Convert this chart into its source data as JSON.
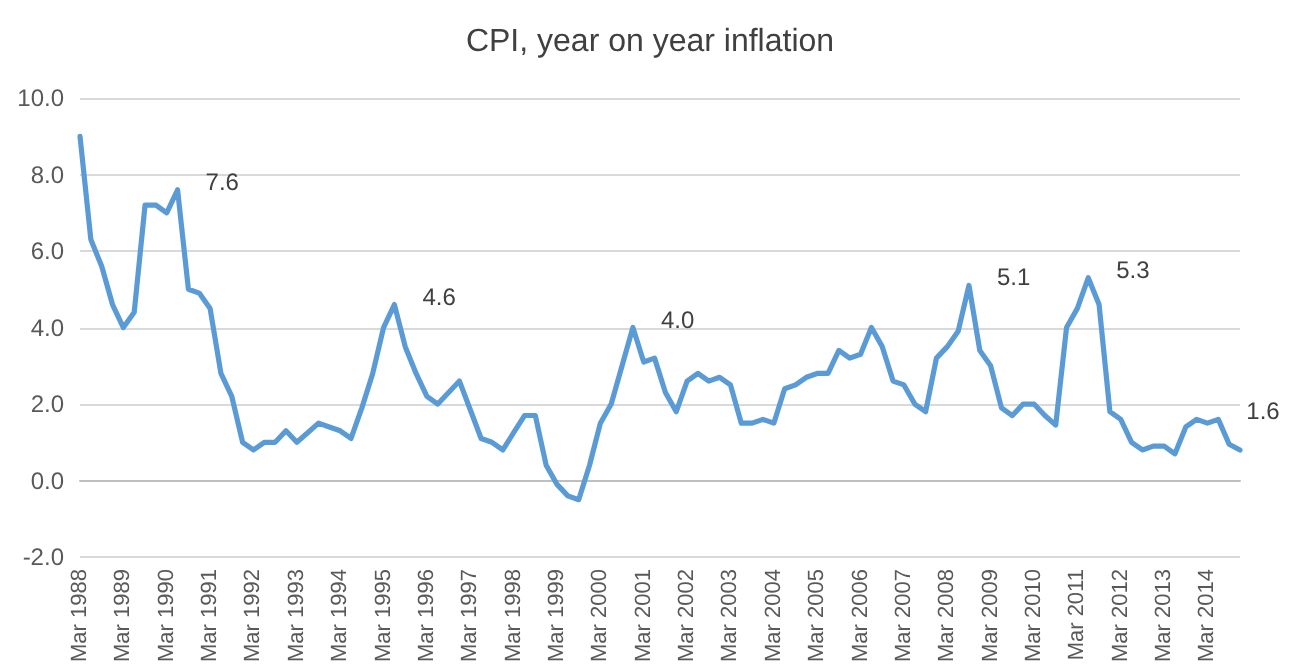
{
  "chart_data": {
    "type": "line",
    "title": "CPI, year on year inflation",
    "categories": [
      "Mar 1988",
      null,
      null,
      null,
      "Mar 1989",
      null,
      null,
      null,
      "Mar 1990",
      null,
      null,
      null,
      "Mar 1991",
      null,
      null,
      null,
      "Mar 1992",
      null,
      null,
      null,
      "Mar 1993",
      null,
      null,
      null,
      "Mar 1994",
      null,
      null,
      null,
      "Mar 1995",
      null,
      null,
      null,
      "Mar 1996",
      null,
      null,
      null,
      "Mar 1997",
      null,
      null,
      null,
      "Mar 1998",
      null,
      null,
      null,
      "Mar 1999",
      null,
      null,
      null,
      "Mar 2000",
      null,
      null,
      null,
      "Mar 2001",
      null,
      null,
      null,
      "Mar 2002",
      null,
      null,
      null,
      "Mar 2003",
      null,
      null,
      null,
      "Mar 2004",
      null,
      null,
      null,
      "Mar 2005",
      null,
      null,
      null,
      "Mar 2006",
      null,
      null,
      null,
      "Mar 2007",
      null,
      null,
      null,
      "Mar 2008",
      null,
      null,
      null,
      "Mar 2009",
      null,
      null,
      null,
      "Mar 2010",
      null,
      null,
      null,
      "Mar 2011",
      null,
      null,
      null,
      "Mar 2012",
      null,
      null,
      null,
      "Mar 2013",
      null,
      null,
      null,
      "Mar 2014",
      null,
      null,
      null
    ],
    "series": [
      {
        "color": "#5b9bd5",
        "values": [
          9.0,
          6.3,
          5.6,
          4.6,
          4.0,
          4.4,
          7.2,
          7.2,
          7.0,
          7.6,
          5.0,
          4.9,
          4.5,
          2.8,
          2.2,
          1.0,
          0.8,
          1.0,
          1.0,
          1.3,
          1.0,
          1.25,
          1.5,
          1.4,
          1.3,
          1.1,
          1.9,
          2.8,
          4.0,
          4.6,
          3.5,
          2.8,
          2.2,
          2.0,
          2.3,
          2.6,
          1.85,
          1.1,
          1.0,
          0.8,
          1.25,
          1.7,
          1.7,
          0.4,
          -0.1,
          -0.4,
          -0.5,
          0.4,
          1.5,
          2.0,
          3.0,
          4.0,
          3.1,
          3.2,
          2.3,
          1.8,
          2.6,
          2.8,
          2.6,
          2.7,
          2.5,
          1.5,
          1.5,
          1.6,
          1.5,
          2.4,
          2.5,
          2.7,
          2.8,
          2.8,
          3.4,
          3.2,
          3.3,
          4.0,
          3.5,
          2.6,
          2.5,
          2.0,
          1.8,
          3.2,
          3.5,
          3.9,
          5.1,
          3.4,
          3.0,
          1.9,
          1.7,
          2.0,
          2.0,
          1.7,
          1.45,
          4.0,
          4.5,
          5.3,
          4.6,
          1.8,
          1.6,
          1.0,
          0.8,
          0.9,
          0.9,
          0.7,
          1.4,
          1.6,
          1.5,
          1.6,
          0.95,
          0.8
        ],
        "value_labels": [
          null,
          null,
          null,
          null,
          null,
          null,
          null,
          null,
          null,
          "7.6",
          null,
          null,
          null,
          null,
          null,
          null,
          null,
          null,
          null,
          null,
          null,
          null,
          null,
          null,
          null,
          null,
          null,
          null,
          null,
          "4.6",
          null,
          null,
          null,
          null,
          null,
          null,
          null,
          null,
          null,
          null,
          null,
          null,
          null,
          null,
          null,
          null,
          null,
          null,
          null,
          null,
          null,
          "4.0",
          null,
          null,
          null,
          null,
          null,
          null,
          null,
          null,
          null,
          null,
          null,
          null,
          null,
          null,
          null,
          null,
          null,
          null,
          null,
          null,
          null,
          null,
          null,
          null,
          null,
          null,
          null,
          null,
          null,
          null,
          "5.1",
          null,
          null,
          null,
          null,
          null,
          null,
          null,
          null,
          null,
          null,
          "5.3",
          null,
          null,
          null,
          null,
          null,
          null,
          null,
          null,
          null,
          null,
          null,
          "1.6",
          null,
          null
        ]
      }
    ],
    "ylim": [
      -2,
      10
    ],
    "yticks": [
      {
        "value": -2,
        "label": "-2.0"
      },
      {
        "value": 0,
        "label": "0.0"
      },
      {
        "value": 2,
        "label": "2.0"
      },
      {
        "value": 4,
        "label": "4.0"
      },
      {
        "value": 6,
        "label": "6.0"
      },
      {
        "value": 8,
        "label": "8.0"
      },
      {
        "value": 10,
        "label": "10.0"
      }
    ],
    "grid": "y",
    "marker": "none",
    "line_style": "solid"
  }
}
